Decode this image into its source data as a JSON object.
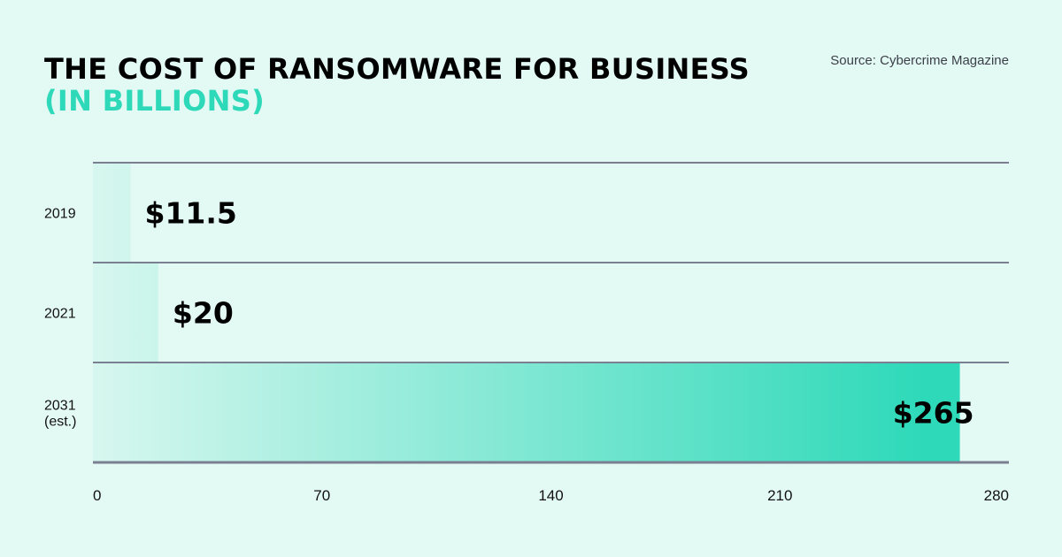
{
  "header": {
    "title": "THE COST OF RANSOMWARE FOR BUSINESS",
    "subtitle": "(IN BILLIONS)",
    "source": "Source: Cybercrime Magazine"
  },
  "colors": {
    "background": "#e3f9f3",
    "accent": "#2ed9b9",
    "bar_start": "#d7f7ef",
    "bar_end": "#2ed9b9",
    "gridline": "#7a7f92",
    "text": "#000000"
  },
  "chart_data": {
    "type": "bar",
    "orientation": "horizontal",
    "categories": [
      [
        "2019"
      ],
      [
        "2021"
      ],
      [
        "2031",
        "(est.)"
      ]
    ],
    "values": [
      11.5,
      20,
      265
    ],
    "value_labels": [
      "$11.5",
      "$20",
      "$265"
    ],
    "title": "THE COST OF RANSOMWARE FOR BUSINESS",
    "subtitle": "(IN BILLIONS)",
    "xlim": [
      0,
      280
    ],
    "x_ticks": [
      0,
      70,
      140,
      210,
      280
    ],
    "x_tick_labels": [
      "0",
      "70",
      "140",
      "210",
      "280"
    ],
    "grid": true
  }
}
